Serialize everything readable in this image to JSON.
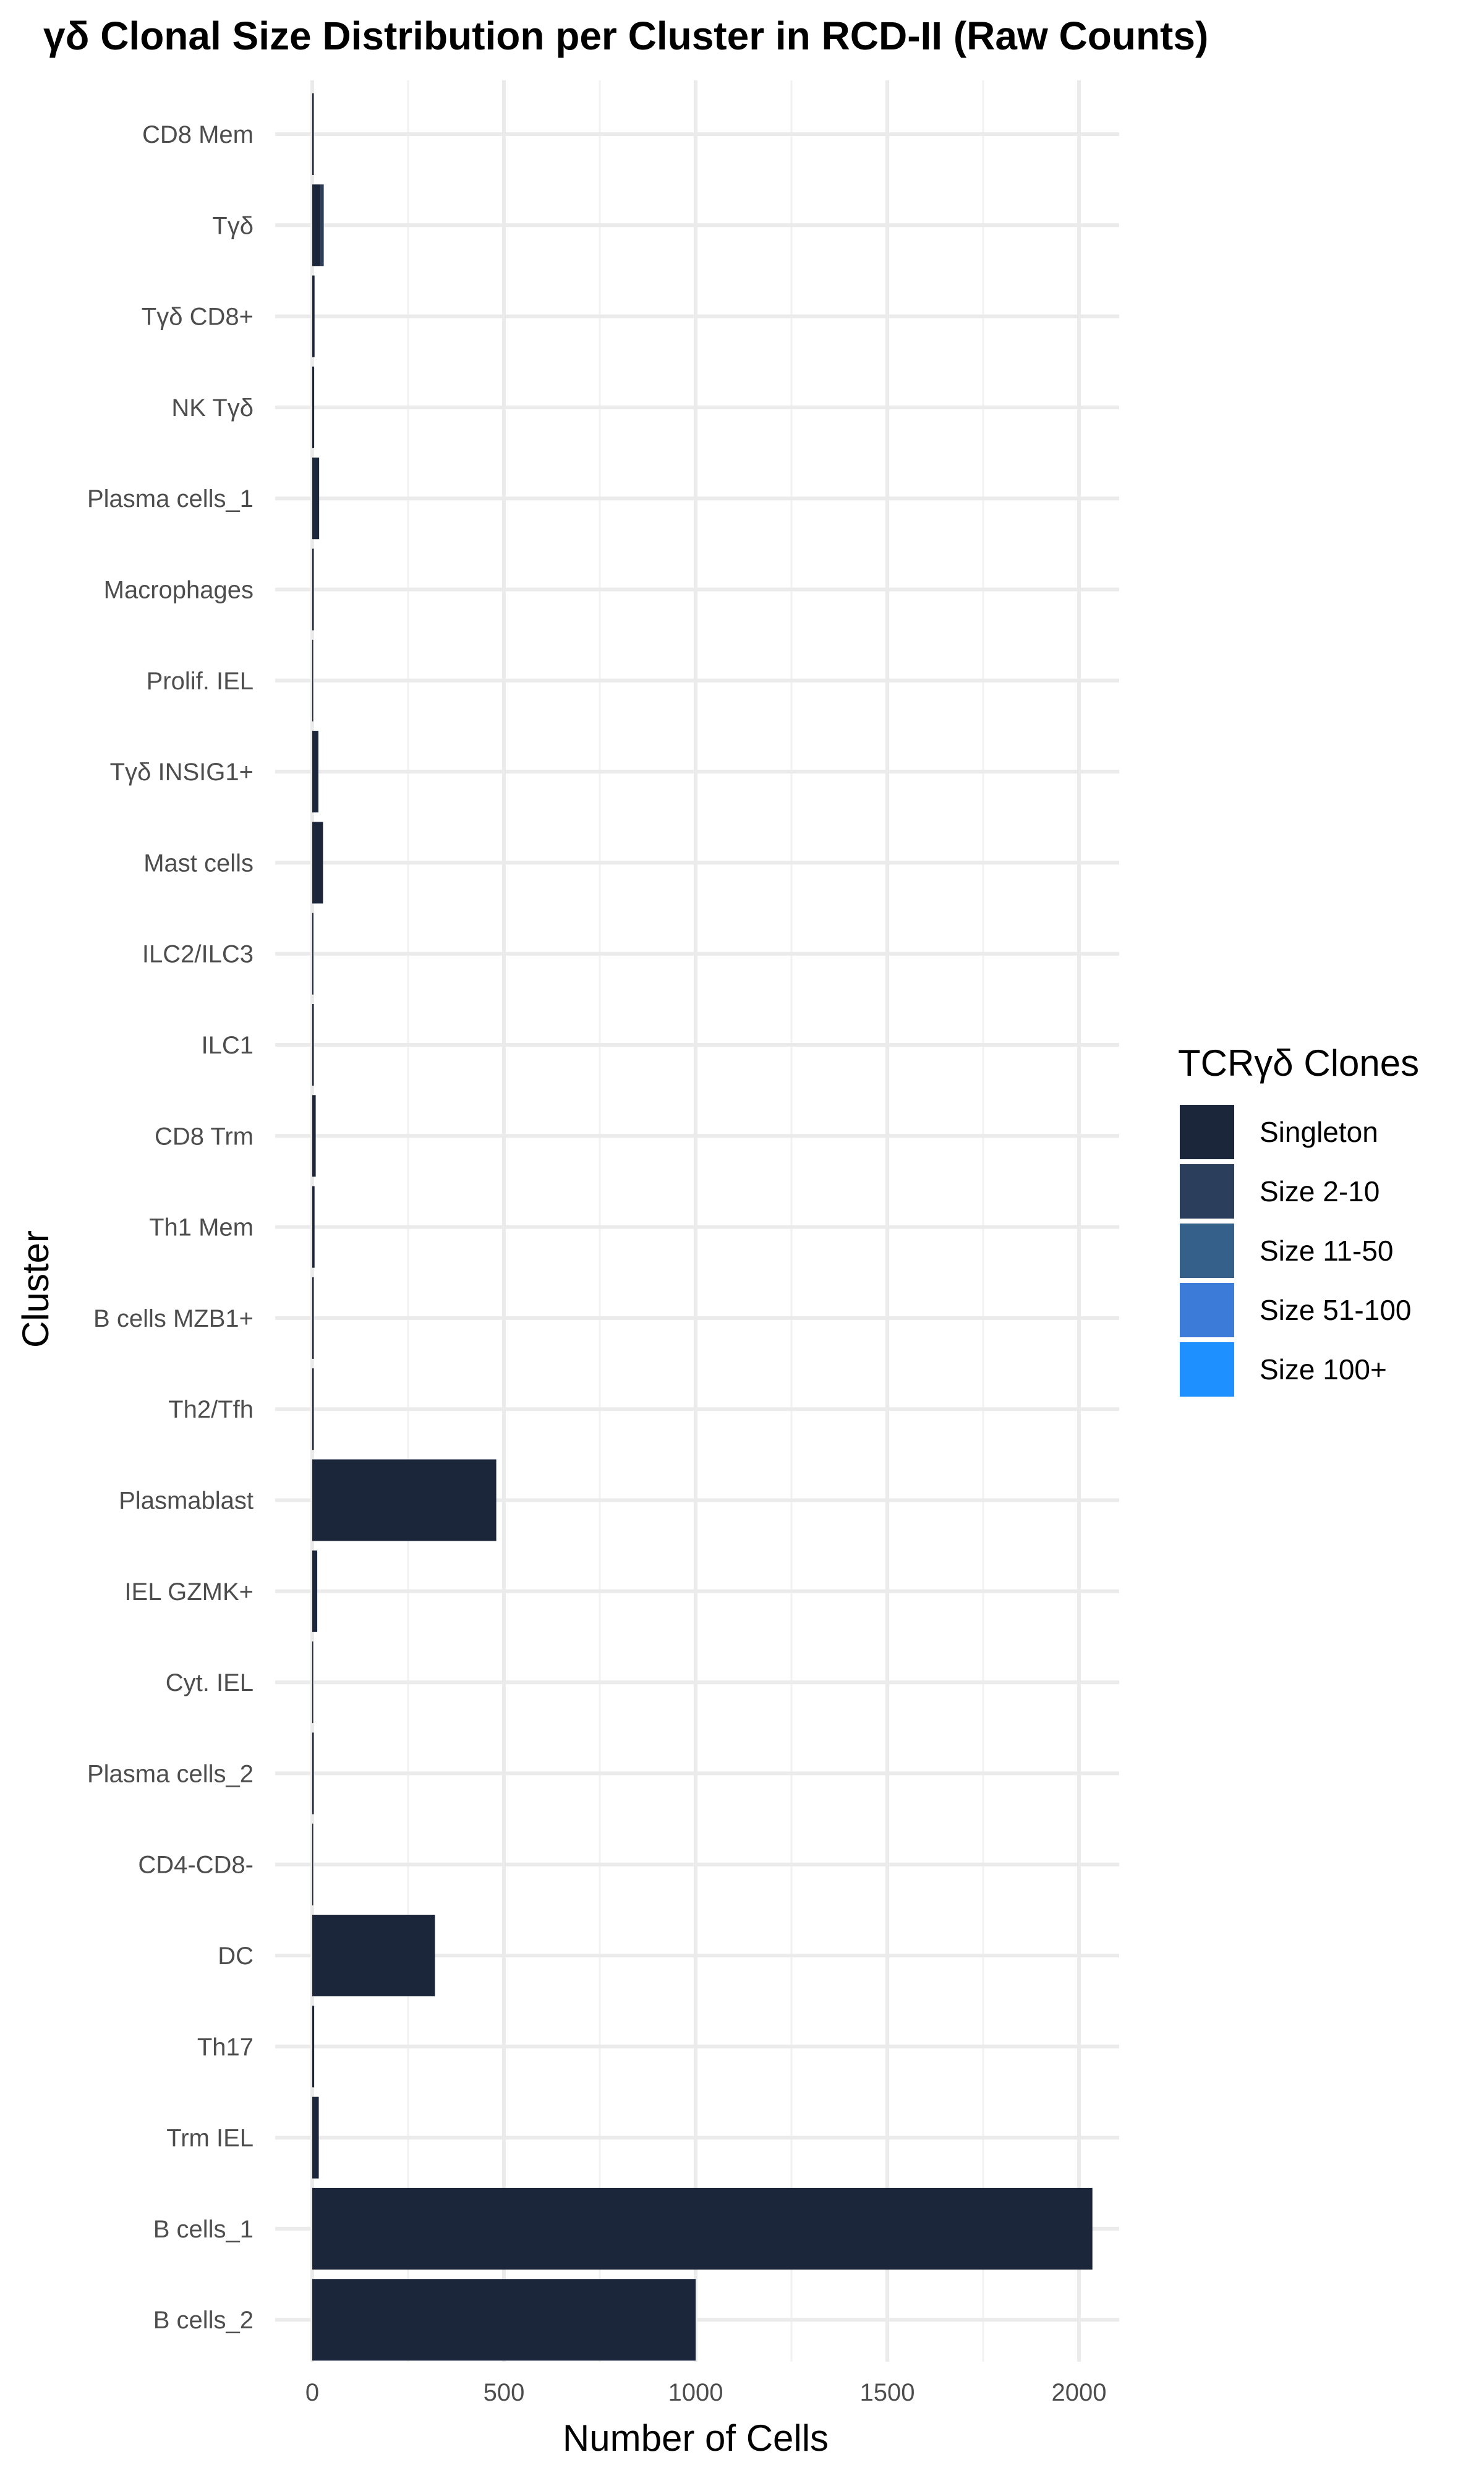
{
  "chart_data": {
    "type": "bar",
    "orientation": "horizontal",
    "stacked": true,
    "title": "γδ Clonal Size Distribution per Cluster in RCD-II (Raw Counts)",
    "xlabel": "Number of Cells",
    "ylabel": "Cluster",
    "xlim": [
      0,
      2150
    ],
    "xticks": [
      0,
      500,
      1000,
      1500,
      2000
    ],
    "xtick_labels": [
      "0",
      "500",
      "1000",
      "1500",
      "2000"
    ],
    "grid": true,
    "legend_position": "right",
    "legend_title": "TCRγδ Clones",
    "categories": [
      "CD8 Mem",
      "Tγδ",
      "Tγδ CD8+",
      "NK Tγδ",
      "Plasma cells_1",
      "Macrophages",
      "Prolif. IEL",
      "Tγδ INSIG1+",
      "Mast cells",
      "ILC2/ILC3",
      "ILC1",
      "CD8 Trm",
      "Th1 Mem",
      "B cells MZB1+",
      "Th2/Tfh",
      "Plasmablast",
      "IEL GZMK+",
      "Cyt. IEL",
      "Plasma cells_2",
      "CD4-CD8-",
      "DC",
      "Th17",
      "Trm IEL",
      "B cells_1",
      "B cells_2"
    ],
    "series": [
      {
        "name": "Singleton",
        "color": "#1b263b",
        "values": [
          4,
          22,
          6,
          5,
          18,
          4,
          2,
          16,
          28,
          3,
          4,
          9,
          6,
          4,
          4,
          480,
          13,
          2,
          4,
          2,
          320,
          5,
          17,
          2035,
          1000
        ]
      },
      {
        "name": "Size 2-10",
        "color": "#2b3f5c",
        "values": [
          0,
          8,
          0,
          0,
          0,
          0,
          0,
          0,
          0,
          0,
          0,
          0,
          0,
          0,
          0,
          0,
          0,
          0,
          0,
          0,
          0,
          0,
          0,
          0,
          0
        ]
      },
      {
        "name": "Size 11-50",
        "color": "#35608a",
        "values": [
          0,
          0,
          0,
          0,
          0,
          0,
          0,
          0,
          0,
          0,
          0,
          0,
          0,
          0,
          0,
          0,
          0,
          0,
          0,
          0,
          0,
          0,
          0,
          0,
          0
        ]
      },
      {
        "name": "Size 51-100",
        "color": "#3d7bd8",
        "values": [
          0,
          0,
          0,
          0,
          0,
          0,
          0,
          0,
          0,
          0,
          0,
          0,
          0,
          0,
          0,
          0,
          0,
          0,
          0,
          0,
          0,
          0,
          0,
          0,
          0
        ]
      },
      {
        "name": "Size 100+",
        "color": "#1e90ff",
        "values": [
          0,
          0,
          0,
          0,
          0,
          0,
          0,
          0,
          0,
          0,
          0,
          0,
          0,
          0,
          0,
          0,
          0,
          0,
          0,
          0,
          0,
          0,
          0,
          0,
          0
        ]
      }
    ]
  }
}
